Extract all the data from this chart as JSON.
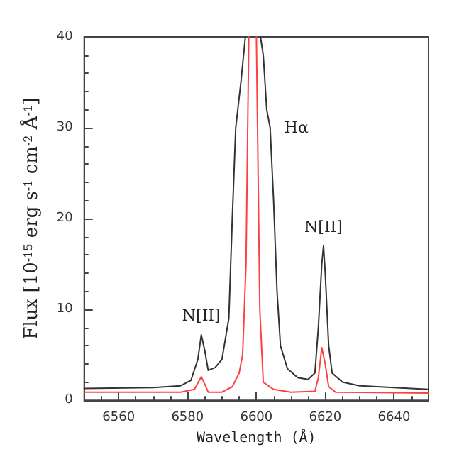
{
  "chart_data": {
    "type": "line",
    "xlabel": "Wavelength (Å)",
    "ylabel": "Flux [10$^{-15}$ erg s$^{-1}$ cm$^{-2}$ Å$^{-1}$]",
    "xlim": [
      6550,
      6650
    ],
    "xticks": [
      6560,
      6580,
      6600,
      6620,
      6640
    ],
    "ylim": [
      0,
      40
    ],
    "yticks": [
      0,
      10,
      20,
      30,
      40
    ],
    "grid": false,
    "marker": "none",
    "line_style": "solid",
    "series": [
      {
        "color": "#333333",
        "x": [
          6550,
          6570,
          6578,
          6581,
          6583,
          6584,
          6585,
          6586,
          6588,
          6590,
          6592,
          6593,
          6594,
          6595.5,
          6596.8,
          6599,
          6601.2,
          6602,
          6603,
          6604,
          6605,
          6606,
          6607,
          6609,
          6612,
          6615,
          6617,
          6618,
          6619,
          6619.5,
          6620,
          6621,
          6622,
          6625,
          6630,
          6640,
          6650
        ],
        "values": [
          1.3,
          1.4,
          1.6,
          2.2,
          4.5,
          7.2,
          5.5,
          3.3,
          3.6,
          4.5,
          9,
          20,
          30,
          35,
          40,
          null,
          40,
          38,
          32,
          30,
          22,
          12,
          6,
          3.5,
          2.5,
          2.3,
          3,
          8,
          15,
          17,
          14,
          6,
          3,
          2,
          1.6,
          1.4,
          1.2
        ]
      },
      {
        "color": "#ff4040",
        "x": [
          6550,
          6578,
          6582,
          6584,
          6585,
          6586,
          6590,
          6593,
          6595,
          6596,
          6597,
          6597.8,
          6599,
          6600,
          6601,
          6602,
          6605,
          6610,
          6617,
          6618,
          6619,
          6620,
          6621,
          6623,
          6650
        ],
        "values": [
          0.9,
          0.9,
          1.2,
          2.6,
          1.8,
          0.9,
          0.9,
          1.5,
          3,
          5,
          15,
          40,
          null,
          40,
          10,
          2,
          1.2,
          0.9,
          1.0,
          2.5,
          5.8,
          4,
          1.5,
          0.9,
          0.8
        ]
      }
    ],
    "annotations": [
      {
        "text": "Hα",
        "x": 6604,
        "y": 30
      },
      {
        "text": "N[II]",
        "x": 6584,
        "y": 7.2
      },
      {
        "text": "N[II]",
        "x": 6619.5,
        "y": 17
      }
    ]
  }
}
